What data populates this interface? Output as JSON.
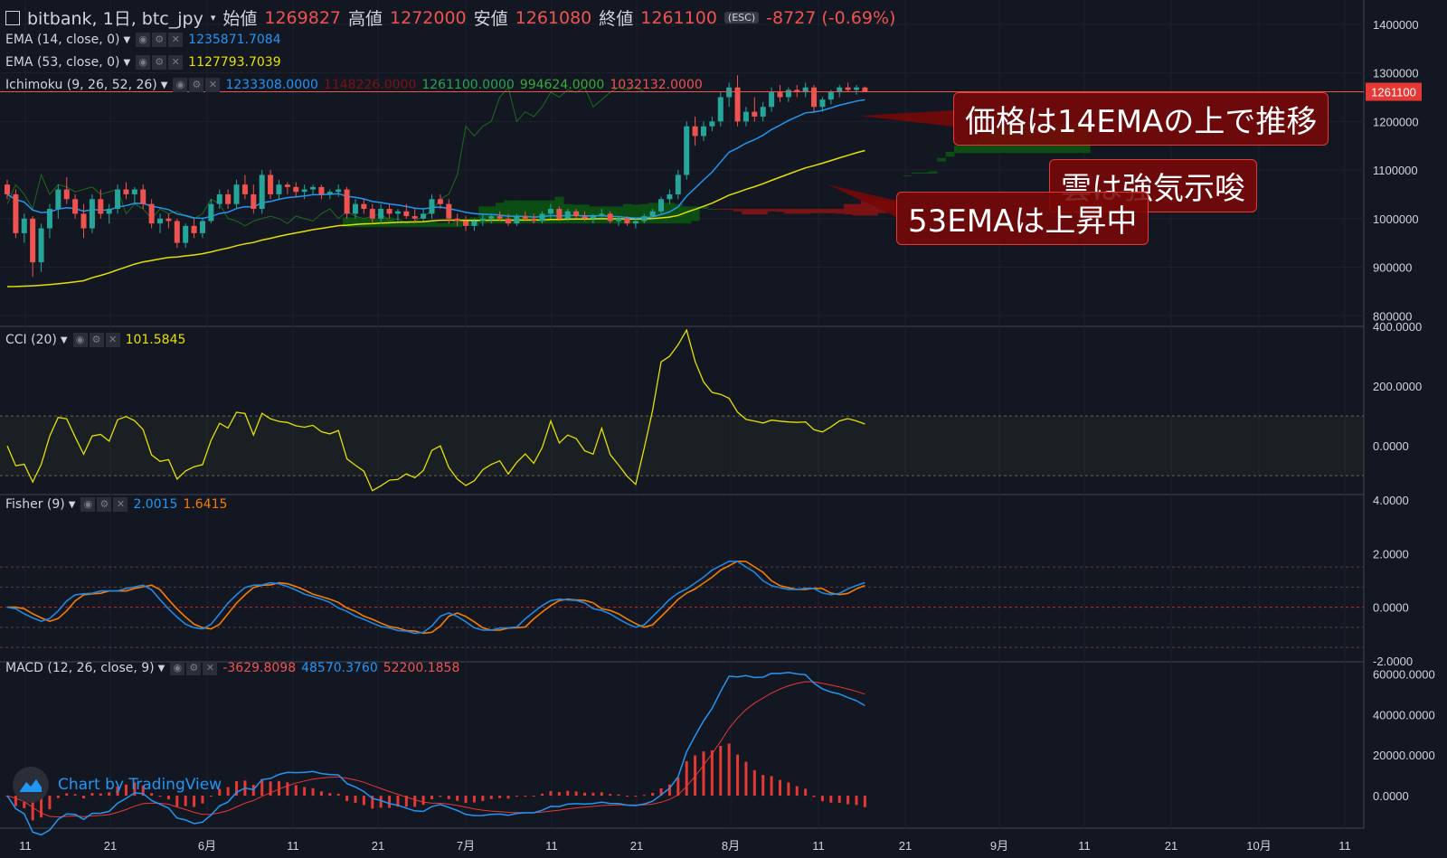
{
  "header": {
    "symbol": "bitbank, 1日, btc_jpy",
    "open_label": "始値",
    "open": "1269827",
    "high_label": "高値",
    "high": "1272000",
    "low_label": "安値",
    "low": "1261080",
    "close_label": "終値",
    "close": "1261100",
    "change": "-8727 (-0.69%)",
    "hide_hint": "(ESC)"
  },
  "colors": {
    "background": "#131722",
    "grid": "#1e222d",
    "text": "#d1d4dc",
    "up": "#26a69a",
    "down": "#ef5350",
    "ema14": "#2196f3",
    "ema53": "#e5e000",
    "cloud_bull": "#0b4d12",
    "cloud_bear": "#7a1313",
    "fisher_main": "#1e88e5",
    "fisher_trigger": "#f57c00",
    "macd": "#2196f3",
    "macd_signal": "#e53935",
    "hist": "#e53935"
  },
  "icons": [
    "eye-icon",
    "gear-icon",
    "close-icon",
    "chevron-down-icon",
    "tradingview-logo-icon"
  ],
  "legends": {
    "ema14": {
      "name": "EMA (14, close, 0)",
      "value": "1235871.7084"
    },
    "ema53": {
      "name": "EMA (53, close, 0)",
      "value": "1127793.7039"
    },
    "ichimoku": {
      "name": "Ichimoku (9, 26, 52, 26)",
      "values": [
        "1233308.0000",
        "1148226.0000",
        "1261100.0000",
        "994624.0000",
        "1032132.0000"
      ],
      "colors": [
        "#2196f3",
        "#7a1313",
        "#26a651",
        "#3aa83a",
        "#ef5350"
      ]
    },
    "cci": {
      "name": "CCI (20)",
      "value": "101.5845"
    },
    "fisher": {
      "name": "Fisher (9)",
      "values": [
        "2.0015",
        "1.6415"
      ]
    },
    "macd": {
      "name": "MACD (12, 26, close, 9)",
      "values": [
        "-3629.8098",
        "48570.3760",
        "52200.1858"
      ]
    }
  },
  "annotations": {
    "a1": "価格は14EMAの上で推移",
    "a2": "雲は強気示唆",
    "a3": "53EMAは上昇中"
  },
  "watermark": "Chart by TradingView",
  "chart_data": [
    {
      "type": "candlestick",
      "title": "bitbank, 1日, btc_jpy",
      "ylim": [
        780000,
        1450000
      ],
      "y_ticks": [
        "800000",
        "900000",
        "1000000",
        "1100000",
        "1200000",
        "1300000",
        "1400000"
      ],
      "last_price_label": "1261100",
      "x_tick_labels": [
        "11",
        "21",
        "6月",
        "11",
        "21",
        "7月",
        "11",
        "21",
        "8月",
        "11",
        "21",
        "9月",
        "11",
        "21",
        "10月",
        "11"
      ],
      "ohlc": [
        [
          1070000,
          1080000,
          1040000,
          1050000
        ],
        [
          1050000,
          1060000,
          960000,
          970000
        ],
        [
          970000,
          1010000,
          950000,
          1000000
        ],
        [
          1000000,
          1005000,
          880000,
          910000
        ],
        [
          910000,
          990000,
          890000,
          980000
        ],
        [
          980000,
          1030000,
          960000,
          1020000
        ],
        [
          1020000,
          1070000,
          1000000,
          1060000
        ],
        [
          1060000,
          1085000,
          1030000,
          1040000
        ],
        [
          1040000,
          1050000,
          1000000,
          1010000
        ],
        [
          1010000,
          1030000,
          960000,
          980000
        ],
        [
          980000,
          1050000,
          970000,
          1040000
        ],
        [
          1040000,
          1060000,
          1000000,
          1010000
        ],
        [
          1010000,
          1030000,
          990000,
          1020000
        ],
        [
          1020000,
          1070000,
          1010000,
          1060000
        ],
        [
          1060000,
          1075000,
          1040000,
          1050000
        ],
        [
          1050000,
          1065000,
          1030000,
          1060000
        ],
        [
          1060000,
          1070000,
          1020000,
          1030000
        ],
        [
          1030000,
          1040000,
          980000,
          990000
        ],
        [
          990000,
          1010000,
          970000,
          1000000
        ],
        [
          1000000,
          1010000,
          980000,
          995000
        ],
        [
          995000,
          1000000,
          940000,
          950000
        ],
        [
          950000,
          990000,
          940000,
          985000
        ],
        [
          985000,
          1000000,
          960000,
          970000
        ],
        [
          970000,
          1000000,
          960000,
          995000
        ],
        [
          995000,
          1040000,
          990000,
          1030000
        ],
        [
          1030000,
          1060000,
          1020000,
          1050000
        ],
        [
          1050000,
          1060000,
          1020000,
          1030000
        ],
        [
          1030000,
          1080000,
          1020000,
          1070000
        ],
        [
          1070000,
          1090000,
          1040000,
          1050000
        ],
        [
          1050000,
          1070000,
          1010000,
          1020000
        ],
        [
          1020000,
          1100000,
          1010000,
          1090000
        ],
        [
          1090000,
          1100000,
          1040000,
          1050000
        ],
        [
          1050000,
          1080000,
          1040000,
          1070000
        ],
        [
          1070000,
          1075000,
          1050000,
          1065000
        ],
        [
          1065000,
          1075000,
          1045000,
          1055000
        ],
        [
          1055000,
          1070000,
          1040000,
          1060000
        ],
        [
          1060000,
          1070000,
          1050000,
          1065000
        ],
        [
          1065000,
          1070000,
          1040000,
          1050000
        ],
        [
          1050000,
          1060000,
          1040000,
          1055000
        ],
        [
          1055000,
          1070000,
          1045000,
          1060000
        ],
        [
          1060000,
          1065000,
          1000000,
          1010000
        ],
        [
          1010000,
          1040000,
          1000000,
          1030000
        ],
        [
          1030000,
          1040000,
          1010000,
          1020000
        ],
        [
          1020000,
          1030000,
          990000,
          1000000
        ],
        [
          1000000,
          1030000,
          990000,
          1020000
        ],
        [
          1020000,
          1030000,
          1000000,
          1010000
        ],
        [
          1010000,
          1020000,
          995000,
          1015000
        ],
        [
          1015000,
          1030000,
          1000000,
          1005000
        ],
        [
          1005000,
          1020000,
          990000,
          1000000
        ],
        [
          1000000,
          1020000,
          995000,
          1010000
        ],
        [
          1010000,
          1050000,
          1000000,
          1040000
        ],
        [
          1040000,
          1050000,
          1020000,
          1030000
        ],
        [
          1030000,
          1040000,
          990000,
          1000000
        ],
        [
          1000000,
          1010000,
          985000,
          995000
        ],
        [
          995000,
          1005000,
          975000,
          985000
        ],
        [
          985000,
          1000000,
          975000,
          995000
        ],
        [
          995000,
          1010000,
          985000,
          1000000
        ],
        [
          1000000,
          1010000,
          990000,
          1005000
        ],
        [
          1005000,
          1015000,
          995000,
          1000000
        ],
        [
          1000000,
          1010000,
          985000,
          990000
        ],
        [
          990000,
          1010000,
          985000,
          1005000
        ],
        [
          1005000,
          1015000,
          995000,
          1000000
        ],
        [
          1000000,
          1010000,
          990000,
          995000
        ],
        [
          995000,
          1015000,
          990000,
          1010000
        ],
        [
          1010000,
          1030000,
          1000000,
          1020000
        ],
        [
          1020000,
          1025000,
          995000,
          1000000
        ],
        [
          1000000,
          1020000,
          995000,
          1015000
        ],
        [
          1015000,
          1020000,
          1000000,
          1005000
        ],
        [
          1005000,
          1015000,
          995000,
          1000000
        ],
        [
          1000000,
          1010000,
          990000,
          1005000
        ],
        [
          1005000,
          1020000,
          1000000,
          1010000
        ],
        [
          1010000,
          1015000,
          990000,
          995000
        ],
        [
          995000,
          1005000,
          985000,
          1000000
        ],
        [
          1000000,
          1005000,
          985000,
          990000
        ],
        [
          990000,
          1000000,
          980000,
          995000
        ],
        [
          995000,
          1010000,
          990000,
          1005000
        ],
        [
          1005000,
          1020000,
          1000000,
          1015000
        ],
        [
          1015000,
          1045000,
          1010000,
          1040000
        ],
        [
          1040000,
          1060000,
          1030000,
          1050000
        ],
        [
          1050000,
          1100000,
          1040000,
          1090000
        ],
        [
          1090000,
          1200000,
          1080000,
          1190000
        ],
        [
          1190000,
          1210000,
          1150000,
          1170000
        ],
        [
          1170000,
          1200000,
          1160000,
          1190000
        ],
        [
          1190000,
          1210000,
          1180000,
          1200000
        ],
        [
          1200000,
          1260000,
          1190000,
          1250000
        ],
        [
          1250000,
          1280000,
          1230000,
          1270000
        ],
        [
          1270000,
          1295000,
          1190000,
          1200000
        ],
        [
          1200000,
          1230000,
          1190000,
          1220000
        ],
        [
          1220000,
          1250000,
          1200000,
          1210000
        ],
        [
          1210000,
          1240000,
          1200000,
          1230000
        ],
        [
          1230000,
          1270000,
          1220000,
          1260000
        ],
        [
          1260000,
          1275000,
          1240000,
          1250000
        ],
        [
          1250000,
          1270000,
          1240000,
          1265000
        ],
        [
          1265000,
          1275000,
          1250000,
          1260000
        ],
        [
          1260000,
          1280000,
          1250000,
          1270000
        ],
        [
          1270000,
          1275000,
          1220000,
          1230000
        ],
        [
          1230000,
          1250000,
          1220000,
          1245000
        ],
        [
          1245000,
          1265000,
          1235000,
          1260000
        ],
        [
          1260000,
          1275000,
          1250000,
          1270000
        ],
        [
          1270000,
          1280000,
          1260000,
          1265000
        ],
        [
          1265000,
          1275000,
          1255000,
          1270000
        ],
        [
          1269827,
          1272000,
          1261080,
          1261100
        ]
      ]
    },
    {
      "type": "line",
      "title": "CCI (20)",
      "ylim": [
        -160,
        400
      ],
      "y_ticks": [
        "0.0000",
        "200.0000",
        "400.0000"
      ],
      "band": [
        -100,
        100
      ]
    },
    {
      "type": "line",
      "title": "Fisher (9)",
      "ylim": [
        -2,
        4.2
      ],
      "y_ticks": [
        "-2.0000",
        "0.0000",
        "2.0000",
        "4.0000"
      ],
      "levels": [
        1.5,
        0.75,
        0,
        -0.75,
        -1.5
      ]
    },
    {
      "type": "line",
      "title": "MACD (12, 26, close, 9)",
      "ylim": [
        -16000,
        66000
      ],
      "y_ticks": [
        "0.0000",
        "20000.0000",
        "40000.0000",
        "60000.0000"
      ]
    }
  ]
}
